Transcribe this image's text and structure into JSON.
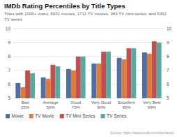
{
  "chart_data": {
    "type": "bar",
    "title": "IMDb Rating Percentiles by Title Types",
    "subtitle": "Titles with 1000+ votes: 6651 movies, 1711 TV movies, 363 TV mini-series, and 5362 TV series",
    "source": "Source: https://www.imdb.com/interfaces/",
    "categories": [
      "Bad\n25%",
      "Average\n50%",
      "Good\n75%",
      "Very Good\n90%",
      "Excellent\n95%",
      "Very Best\n99%"
    ],
    "series": [
      {
        "name": "Movie",
        "color": "#4E6FA3",
        "values": [
          6.1,
          6.5,
          7.1,
          7.5,
          7.9,
          8.3
        ]
      },
      {
        "name": "TV Movie",
        "color": "#E07B39",
        "values": [
          5.8,
          6.4,
          7.0,
          7.5,
          7.8,
          8.2
        ]
      },
      {
        "name": "TV Mini Series",
        "color": "#C05050",
        "values": [
          7.0,
          7.4,
          8.0,
          8.35,
          8.6,
          9.1
        ]
      },
      {
        "name": "TV Series",
        "color": "#5BA8A0",
        "values": [
          6.8,
          7.3,
          8.0,
          8.35,
          8.6,
          9.0
        ]
      }
    ],
    "ylim": [
      5,
      10
    ],
    "yticks": [
      5,
      6,
      7,
      8,
      9,
      10
    ],
    "y2lim": [
      5,
      10
    ],
    "y2ticks": [
      5,
      6,
      7,
      8,
      9,
      10
    ],
    "grid": true,
    "legend": "bottom"
  }
}
